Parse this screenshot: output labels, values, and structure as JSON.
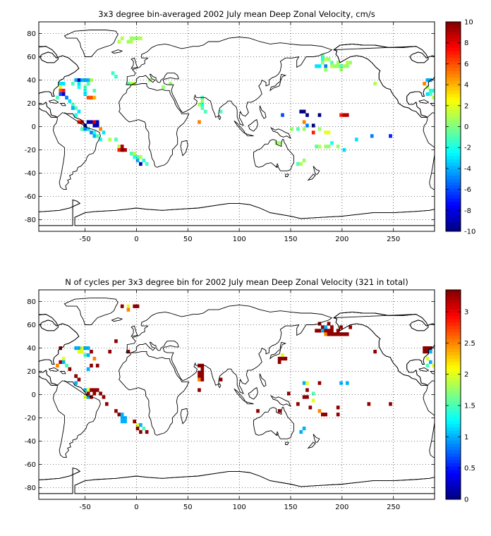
{
  "chart_data": [
    {
      "type": "heatmap",
      "title": "3x3 degree bin-averaged 2002 July mean Deep Zonal Velocity, cm/s",
      "xlim": [
        -95,
        290
      ],
      "ylim": [
        -90,
        90
      ],
      "xticks": [
        -50,
        0,
        50,
        100,
        150,
        200,
        250
      ],
      "yticks": [
        80,
        60,
        40,
        20,
        0,
        -20,
        -40,
        -60,
        -80
      ],
      "grid": true,
      "colorbar": {
        "min": -10,
        "max": 10,
        "ticks": [
          10,
          8,
          6,
          4,
          2,
          0,
          -2,
          -4,
          -6,
          -8,
          -10
        ]
      },
      "bins": [
        [
          -5,
          76,
          0.5
        ],
        [
          -2,
          76,
          0.5
        ],
        [
          1,
          76,
          0.5
        ],
        [
          4,
          76,
          1
        ],
        [
          -5,
          73,
          1
        ],
        [
          -8,
          73,
          0.5
        ],
        [
          -17,
          73,
          1
        ],
        [
          -14,
          76,
          1
        ],
        [
          -20,
          43,
          -1.5
        ],
        [
          -23,
          46,
          -1.5
        ],
        [
          -74,
          37,
          -3
        ],
        [
          -74,
          34,
          2
        ],
        [
          -71,
          37,
          -3
        ],
        [
          -74,
          31,
          6
        ],
        [
          -71,
          31,
          7
        ],
        [
          -74,
          28,
          -6
        ],
        [
          -71,
          28,
          -8
        ],
        [
          -68,
          25,
          -5
        ],
        [
          -77,
          25,
          -1
        ],
        [
          -59,
          40,
          -4
        ],
        [
          -56,
          40,
          -9
        ],
        [
          -53,
          40,
          -4
        ],
        [
          -62,
          37,
          -1
        ],
        [
          -56,
          37,
          -3
        ],
        [
          -56,
          34,
          -2
        ],
        [
          -50,
          40,
          -4
        ],
        [
          -47,
          40,
          -4
        ],
        [
          -47,
          37,
          -1
        ],
        [
          -44,
          40,
          1
        ],
        [
          -50,
          34,
          -1
        ],
        [
          -50,
          31,
          -2
        ],
        [
          -50,
          28,
          -3
        ],
        [
          -47,
          25,
          6
        ],
        [
          -44,
          25,
          6
        ],
        [
          -41,
          25,
          4
        ],
        [
          -41,
          31,
          -1
        ],
        [
          -65,
          22,
          -3
        ],
        [
          -62,
          19,
          -1
        ],
        [
          -59,
          16,
          -1
        ],
        [
          -62,
          16,
          -4
        ],
        [
          -56,
          13,
          -3
        ],
        [
          -59,
          10,
          -2
        ],
        [
          -56,
          4,
          7
        ],
        [
          -53,
          4,
          9
        ],
        [
          -50,
          1,
          -9
        ],
        [
          -47,
          4,
          -9
        ],
        [
          -44,
          4,
          -9
        ],
        [
          -41,
          4,
          8
        ],
        [
          -41,
          1,
          -9
        ],
        [
          -38,
          4,
          -9
        ],
        [
          -38,
          1,
          -9
        ],
        [
          -53,
          -2,
          -1
        ],
        [
          -50,
          -2,
          -5
        ],
        [
          -47,
          -2,
          -3
        ],
        [
          -44,
          -5,
          -5
        ],
        [
          -41,
          -5,
          -2
        ],
        [
          -41,
          -8,
          -4
        ],
        [
          -38,
          -8,
          -1
        ],
        [
          -35,
          -2,
          5
        ],
        [
          -32,
          -5,
          -3
        ],
        [
          -35,
          -11,
          -2
        ],
        [
          -26,
          -11,
          1
        ],
        [
          -20,
          -11,
          -1
        ],
        [
          -17,
          -17,
          1
        ],
        [
          -17,
          -20,
          7
        ],
        [
          -14,
          -17,
          9
        ],
        [
          -14,
          -20,
          10
        ],
        [
          -11,
          -20,
          9
        ],
        [
          -5,
          -23,
          -1
        ],
        [
          -2,
          -23,
          1
        ],
        [
          -2,
          -26,
          -2
        ],
        [
          1,
          -26,
          -1
        ],
        [
          4,
          -26,
          1
        ],
        [
          1,
          -29,
          -4
        ],
        [
          4,
          -32,
          -9
        ],
        [
          7,
          -29,
          -2
        ],
        [
          10,
          -32,
          -1
        ],
        [
          -8,
          37,
          -1
        ],
        [
          -5,
          37,
          1
        ],
        [
          -2,
          37,
          1
        ],
        [
          64,
          25,
          -1
        ],
        [
          64,
          22,
          0.5
        ],
        [
          61,
          19,
          1
        ],
        [
          64,
          19,
          -2
        ],
        [
          64,
          16,
          -1
        ],
        [
          67,
          13,
          -1
        ],
        [
          61,
          4,
          5
        ],
        [
          82,
          13,
          -1
        ],
        [
          13,
          40,
          0.5
        ],
        [
          26,
          34,
          0.5
        ],
        [
          33,
          37,
          0.5
        ],
        [
          136,
          -14,
          0.5
        ],
        [
          139,
          -14,
          0.5
        ],
        [
          142,
          10,
          -6
        ],
        [
          160,
          13,
          -10
        ],
        [
          163,
          13,
          -10
        ],
        [
          166,
          10,
          -10
        ],
        [
          163,
          4,
          5
        ],
        [
          166,
          1,
          -5
        ],
        [
          172,
          1,
          -10
        ],
        [
          178,
          10,
          -10
        ],
        [
          172,
          -5,
          7
        ],
        [
          163,
          -2,
          0.5
        ],
        [
          157,
          -2,
          -1
        ],
        [
          151,
          -2,
          0.5
        ],
        [
          175,
          -17,
          -1
        ],
        [
          178,
          -17,
          1
        ],
        [
          184,
          -17,
          0.5
        ],
        [
          187,
          -17,
          0.5
        ],
        [
          190,
          -14,
          -2
        ],
        [
          196,
          -17,
          0.5
        ],
        [
          202,
          -20,
          -3
        ],
        [
          184,
          -5,
          2
        ],
        [
          187,
          -5,
          2
        ],
        [
          178,
          -2,
          0.5
        ],
        [
          157,
          -32,
          -1
        ],
        [
          160,
          -32,
          1
        ],
        [
          163,
          -29,
          0.5
        ],
        [
          199,
          10,
          7
        ],
        [
          202,
          10,
          9
        ],
        [
          205,
          10,
          9
        ],
        [
          214,
          -11,
          -3
        ],
        [
          229,
          -8,
          -5
        ],
        [
          247,
          -8,
          -7
        ],
        [
          181,
          61,
          -1
        ],
        [
          181,
          58,
          -2
        ],
        [
          184,
          58,
          1
        ],
        [
          187,
          58,
          0.5
        ],
        [
          190,
          55,
          -1
        ],
        [
          190,
          52,
          1
        ],
        [
          193,
          52,
          0.5
        ],
        [
          181,
          55,
          0.5
        ],
        [
          178,
          52,
          -3
        ],
        [
          175,
          52,
          -3
        ],
        [
          184,
          52,
          -5
        ],
        [
          184,
          49,
          0.5
        ],
        [
          196,
          52,
          0.5
        ],
        [
          199,
          52,
          -1
        ],
        [
          199,
          49,
          0.5
        ],
        [
          202,
          52,
          0.5
        ],
        [
          205,
          55,
          1
        ],
        [
          208,
          55,
          0.5
        ],
        [
          205,
          52,
          0.5
        ],
        [
          196,
          55,
          0.5
        ],
        [
          232,
          37,
          1
        ],
        [
          283,
          40,
          -4
        ],
        [
          286,
          40,
          -4
        ],
        [
          280,
          37,
          5
        ],
        [
          283,
          34,
          1
        ],
        [
          286,
          31,
          -2
        ],
        [
          289,
          31,
          -2
        ],
        [
          286,
          28,
          -1
        ],
        [
          289,
          25,
          1
        ],
        [
          283,
          28,
          -3
        ]
      ]
    },
    {
      "type": "heatmap",
      "title": "N of cycles per 3x3 degree bin for 2002 July mean Deep Zonal Velocity (321 in total)",
      "xlim": [
        -95,
        290
      ],
      "ylim": [
        -90,
        90
      ],
      "xticks": [
        -50,
        0,
        50,
        100,
        150,
        200,
        250
      ],
      "yticks": [
        80,
        60,
        40,
        20,
        0,
        -20,
        -40,
        -60,
        -80
      ],
      "grid": true,
      "colorbar": {
        "min": 0,
        "max": 3.35,
        "ticks": [
          3,
          2.5,
          2,
          1.5,
          1,
          0.5,
          0
        ]
      },
      "bins": [
        [
          -8,
          76,
          2
        ],
        [
          -2,
          76,
          3.3
        ],
        [
          1,
          76,
          3.3
        ],
        [
          -14,
          76,
          3.3
        ],
        [
          -8,
          73,
          2.5
        ],
        [
          -74,
          40,
          3.3
        ],
        [
          -71,
          31,
          2
        ],
        [
          -74,
          28,
          3.3
        ],
        [
          -71,
          28,
          1
        ],
        [
          -68,
          25,
          1.5
        ],
        [
          -77,
          25,
          2.5
        ],
        [
          -59,
          40,
          1
        ],
        [
          -56,
          40,
          1
        ],
        [
          -53,
          40,
          2
        ],
        [
          -50,
          40,
          1
        ],
        [
          -47,
          40,
          1
        ],
        [
          -56,
          37,
          2
        ],
        [
          -53,
          37,
          2
        ],
        [
          -50,
          34,
          1.5
        ],
        [
          -47,
          34,
          1
        ],
        [
          -44,
          37,
          3.3
        ],
        [
          -41,
          31,
          2.5
        ],
        [
          -44,
          25,
          3.3
        ],
        [
          -38,
          25,
          3.3
        ],
        [
          -47,
          22,
          1
        ],
        [
          -65,
          22,
          3.3
        ],
        [
          -59,
          16,
          3.3
        ],
        [
          -56,
          13,
          3.3
        ],
        [
          -59,
          10,
          1
        ],
        [
          -50,
          4,
          1
        ],
        [
          -47,
          4,
          2
        ],
        [
          -47,
          1,
          3.3
        ],
        [
          -44,
          4,
          3.3
        ],
        [
          -41,
          4,
          3.3
        ],
        [
          -38,
          4,
          3.3
        ],
        [
          -41,
          1,
          3.3
        ],
        [
          -50,
          -2,
          2
        ],
        [
          -47,
          -2,
          1
        ],
        [
          -44,
          -2,
          3.3
        ],
        [
          -35,
          1,
          3.3
        ],
        [
          -32,
          -2,
          3.3
        ],
        [
          -29,
          -8,
          3.3
        ],
        [
          -20,
          -14,
          3.3
        ],
        [
          -17,
          -17,
          3.3
        ],
        [
          -14,
          -17,
          1
        ],
        [
          -14,
          -20,
          1
        ],
        [
          -11,
          -20,
          1
        ],
        [
          -14,
          -23,
          1
        ],
        [
          -11,
          -23,
          1
        ],
        [
          -2,
          -23,
          3.3
        ],
        [
          1,
          -26,
          2
        ],
        [
          4,
          -26,
          1
        ],
        [
          1,
          -29,
          3.3
        ],
        [
          4,
          -32,
          3.3
        ],
        [
          7,
          -29,
          1.5
        ],
        [
          10,
          -32,
          3.3
        ],
        [
          -20,
          46,
          3.3
        ],
        [
          -8,
          37,
          3.3
        ],
        [
          -26,
          37,
          3.3
        ],
        [
          61,
          25,
          3.3
        ],
        [
          64,
          25,
          3.3
        ],
        [
          64,
          22,
          3.3
        ],
        [
          61,
          19,
          3.3
        ],
        [
          64,
          19,
          3.3
        ],
        [
          61,
          16,
          3.3
        ],
        [
          64,
          16,
          3.3
        ],
        [
          61,
          13,
          2.5
        ],
        [
          64,
          13,
          3.3
        ],
        [
          61,
          4,
          3.3
        ],
        [
          82,
          13,
          3.3
        ],
        [
          118,
          -14,
          3.3
        ],
        [
          139,
          -14,
          3.3
        ],
        [
          142,
          34,
          2
        ],
        [
          142,
          31,
          3.3
        ],
        [
          139,
          31,
          3.3
        ],
        [
          145,
          31,
          3.3
        ],
        [
          139,
          28,
          3.3
        ],
        [
          148,
          1,
          3.3
        ],
        [
          163,
          10,
          1
        ],
        [
          166,
          10,
          2
        ],
        [
          166,
          4,
          3.3
        ],
        [
          163,
          -2,
          3.3
        ],
        [
          166,
          -2,
          3.3
        ],
        [
          172,
          -5,
          2
        ],
        [
          157,
          -8,
          3.3
        ],
        [
          169,
          -11,
          3.3
        ],
        [
          178,
          -14,
          2.5
        ],
        [
          181,
          -17,
          3.3
        ],
        [
          184,
          -17,
          3.3
        ],
        [
          196,
          -17,
          3.3
        ],
        [
          172,
          1,
          1.5
        ],
        [
          178,
          10,
          3.3
        ],
        [
          199,
          10,
          1
        ],
        [
          205,
          10,
          1
        ],
        [
          196,
          -11,
          3.3
        ],
        [
          160,
          -32,
          1
        ],
        [
          163,
          -29,
          1
        ],
        [
          178,
          61,
          3.3
        ],
        [
          181,
          58,
          3.3
        ],
        [
          184,
          58,
          1
        ],
        [
          187,
          61,
          3.3
        ],
        [
          190,
          58,
          3.3
        ],
        [
          178,
          55,
          3.3
        ],
        [
          181,
          55,
          1
        ],
        [
          184,
          55,
          3.3
        ],
        [
          187,
          55,
          3.3
        ],
        [
          190,
          55,
          3.3
        ],
        [
          184,
          52,
          2.5
        ],
        [
          187,
          52,
          3.3
        ],
        [
          190,
          52,
          3.3
        ],
        [
          175,
          55,
          3.3
        ],
        [
          193,
          52,
          3.3
        ],
        [
          196,
          55,
          3.3
        ],
        [
          199,
          58,
          3.3
        ],
        [
          196,
          52,
          3.3
        ],
        [
          199,
          52,
          3.3
        ],
        [
          202,
          52,
          3.3
        ],
        [
          205,
          52,
          3.3
        ],
        [
          208,
          58,
          3.3
        ],
        [
          232,
          37,
          3.3
        ],
        [
          226,
          -8,
          3.3
        ],
        [
          247,
          -8,
          3.3
        ],
        [
          280,
          40,
          3.3
        ],
        [
          283,
          40,
          3.3
        ],
        [
          286,
          40,
          3.3
        ],
        [
          280,
          37,
          3.3
        ],
        [
          283,
          37,
          3.3
        ],
        [
          286,
          37,
          1
        ],
        [
          283,
          31,
          2
        ],
        [
          286,
          28,
          1
        ],
        [
          289,
          25,
          2
        ],
        [
          283,
          25,
          1.5
        ]
      ]
    }
  ]
}
